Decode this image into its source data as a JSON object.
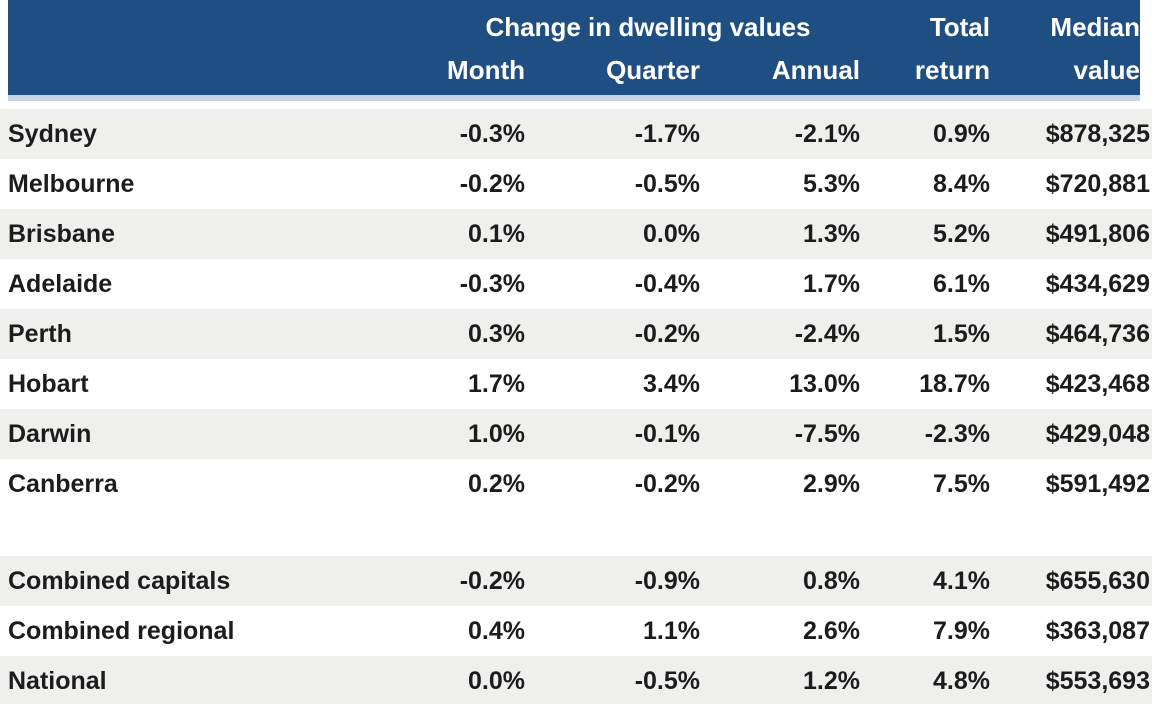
{
  "chart_data": {
    "type": "table",
    "group_header": "Change in dwelling values",
    "columns": [
      "",
      "Month",
      "Quarter",
      "Annual",
      "Total return",
      "Median value"
    ],
    "header_lines": {
      "month": "Month",
      "quarter": "Quarter",
      "annual": "Annual",
      "total": {
        "line1": "Total",
        "line2": "return"
      },
      "median": {
        "line1": "Median",
        "line2": "value"
      }
    },
    "city_rows": [
      {
        "label": "Sydney",
        "month": "-0.3%",
        "quarter": "-1.7%",
        "annual": "-2.1%",
        "total_return": "0.9%",
        "median_value": "$878,325"
      },
      {
        "label": "Melbourne",
        "month": "-0.2%",
        "quarter": "-0.5%",
        "annual": "5.3%",
        "total_return": "8.4%",
        "median_value": "$720,881"
      },
      {
        "label": "Brisbane",
        "month": "0.1%",
        "quarter": "0.0%",
        "annual": "1.3%",
        "total_return": "5.2%",
        "median_value": "$491,806"
      },
      {
        "label": "Adelaide",
        "month": "-0.3%",
        "quarter": "-0.4%",
        "annual": "1.7%",
        "total_return": "6.1%",
        "median_value": "$434,629"
      },
      {
        "label": "Perth",
        "month": "0.3%",
        "quarter": "-0.2%",
        "annual": "-2.4%",
        "total_return": "1.5%",
        "median_value": "$464,736"
      },
      {
        "label": "Hobart",
        "month": "1.7%",
        "quarter": "3.4%",
        "annual": "13.0%",
        "total_return": "18.7%",
        "median_value": "$423,468"
      },
      {
        "label": "Darwin",
        "month": "1.0%",
        "quarter": "-0.1%",
        "annual": "-7.5%",
        "total_return": "-2.3%",
        "median_value": "$429,048"
      },
      {
        "label": "Canberra",
        "month": "0.2%",
        "quarter": "-0.2%",
        "annual": "2.9%",
        "total_return": "7.5%",
        "median_value": "$591,492"
      }
    ],
    "summary_rows": [
      {
        "label": "Combined capitals",
        "month": "-0.2%",
        "quarter": "-0.9%",
        "annual": "0.8%",
        "total_return": "4.1%",
        "median_value": "$655,630"
      },
      {
        "label": "Combined regional",
        "month": "0.4%",
        "quarter": "1.1%",
        "annual": "2.6%",
        "total_return": "7.9%",
        "median_value": "$363,087"
      },
      {
        "label": "National",
        "month": "0.0%",
        "quarter": "-0.5%",
        "annual": "1.2%",
        "total_return": "4.8%",
        "median_value": "$553,693"
      }
    ]
  },
  "colors": {
    "header_bg": "#1F4E82",
    "header_underline": "#C7D4E6",
    "stripe": "#EFEFEE",
    "text": "#1C1C1C",
    "header_text": "#FFFFFF"
  }
}
